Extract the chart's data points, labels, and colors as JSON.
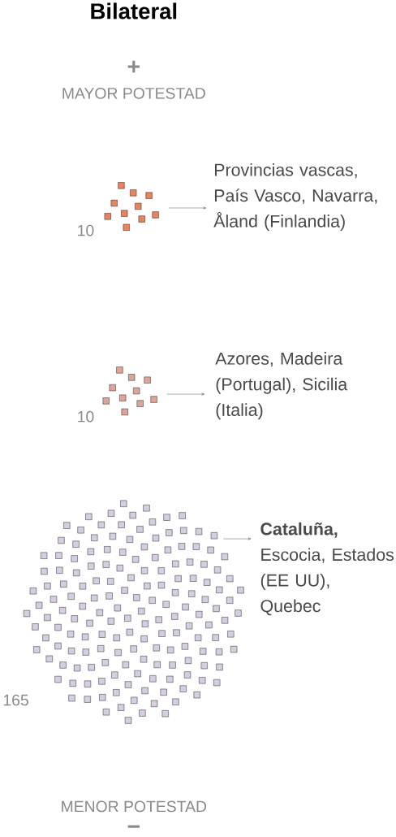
{
  "chart_data": {
    "type": "other",
    "title": "Bilateral",
    "categories": [
      "Provincias vascas, País Vasco, Navarra, Åland (Finlandia)",
      "Azores, Madeira (Portugal), Sicilia (Italia)",
      "**Cataluña,** Escocia, Estados (EE UU), Quebec"
    ],
    "values": [
      10,
      10,
      165
    ],
    "colors": [
      "#e8825f",
      "#dca59b",
      "#d6cde0"
    ],
    "data_labels": true,
    "annotations": [
      "+",
      "MAYOR POTESTAD",
      "MENOR POTESTAD",
      "−"
    ]
  }
}
